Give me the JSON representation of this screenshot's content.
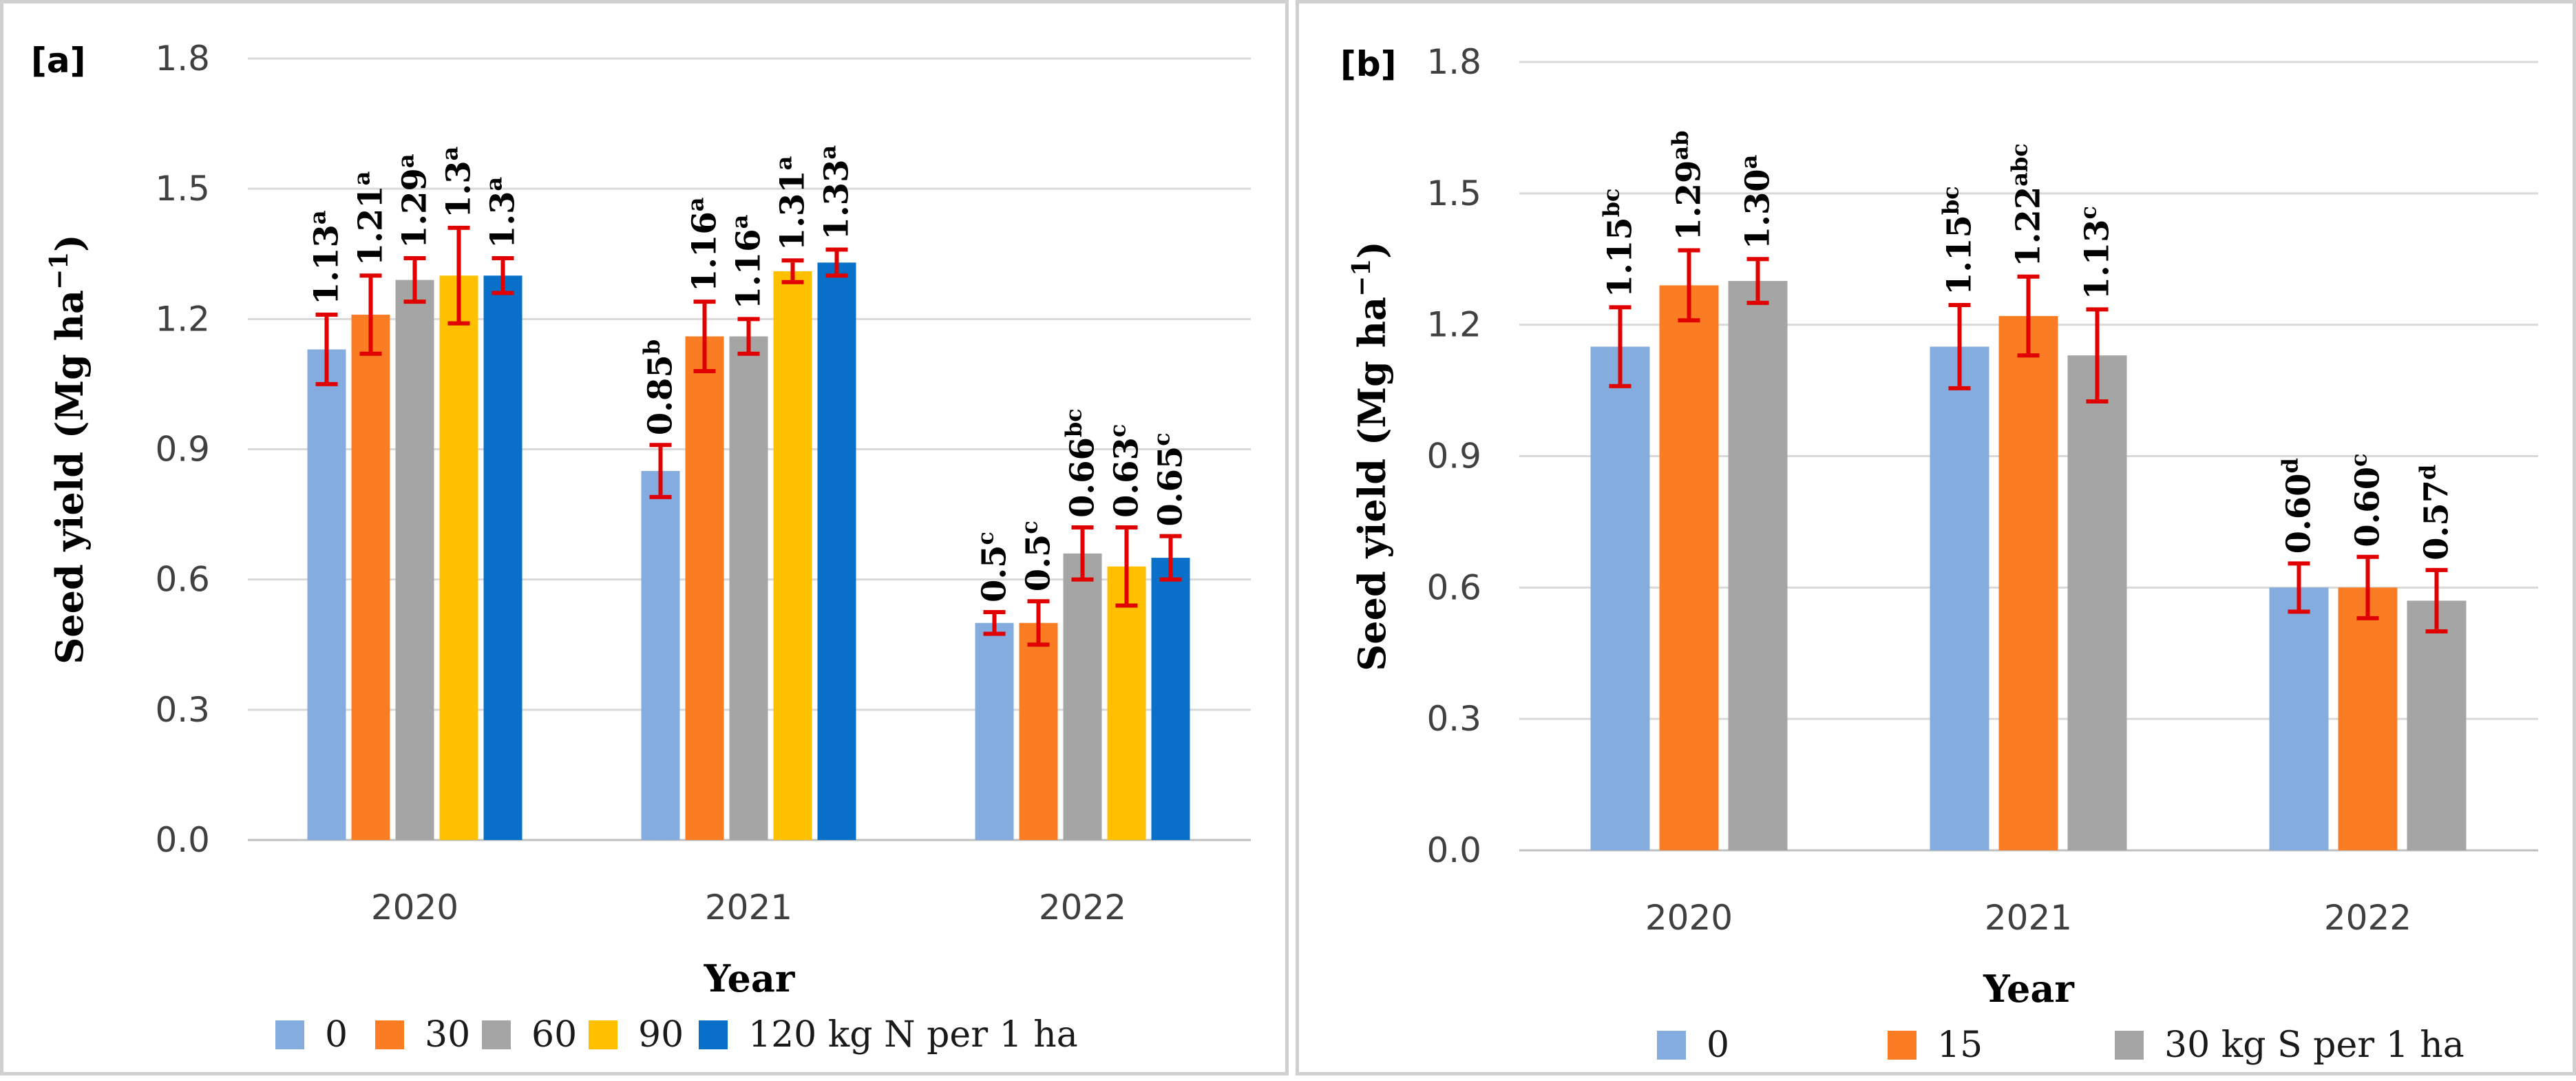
{
  "colors": {
    "light_blue": "#85acdf",
    "orange": "#fa7d24",
    "gray": "#a5a5a5",
    "yellow": "#ffc000",
    "blue": "#0870c8",
    "error_bar": "#e00000"
  },
  "chart_data": [
    {
      "panel": "[a]",
      "type": "bar",
      "xlabel": "Year",
      "ylabel": "Seed yield (Mg ha",
      "ylabel_sup": "−1",
      "ylabel_close": ")",
      "ylim": [
        0,
        1.8
      ],
      "yticks": [
        "0.0",
        "0.3",
        "0.6",
        "0.9",
        "1.2",
        "1.5",
        "1.8"
      ],
      "categories": [
        "2020",
        "2021",
        "2022"
      ],
      "legend_position": "bottom",
      "series": [
        {
          "name": "0",
          "color": "#85acdf",
          "values": [
            1.13,
            0.85,
            0.5
          ],
          "errors": [
            0.08,
            0.06,
            0.025
          ],
          "labels": [
            "1.13",
            "0.85",
            "0.5"
          ],
          "letters": [
            "a",
            "b",
            "c"
          ]
        },
        {
          "name": "30",
          "color": "#fa7d24",
          "values": [
            1.21,
            1.16,
            0.5
          ],
          "errors": [
            0.09,
            0.08,
            0.05
          ],
          "labels": [
            "1.21",
            "1.16",
            "0.5"
          ],
          "letters": [
            "a",
            "a",
            "c"
          ]
        },
        {
          "name": "60",
          "color": "#a5a5a5",
          "values": [
            1.29,
            1.16,
            0.66
          ],
          "errors": [
            0.05,
            0.04,
            0.06
          ],
          "labels": [
            "1.29",
            "1.16",
            "0.66"
          ],
          "letters": [
            "a",
            "a",
            "bc"
          ]
        },
        {
          "name": "90",
          "color": "#ffc000",
          "values": [
            1.3,
            1.31,
            0.63
          ],
          "errors": [
            0.11,
            0.025,
            0.09
          ],
          "labels": [
            "1.3",
            "1.31",
            "0.63"
          ],
          "letters": [
            "a",
            "a",
            "c"
          ]
        },
        {
          "name": "120 kg N per 1 ha",
          "color": "#0870c8",
          "values": [
            1.3,
            1.33,
            0.65
          ],
          "errors": [
            0.04,
            0.03,
            0.05
          ],
          "labels": [
            "1.3",
            "1.33",
            "0.65"
          ],
          "letters": [
            "a",
            "a",
            "c"
          ]
        }
      ]
    },
    {
      "panel": "[b]",
      "type": "bar",
      "xlabel": "Year",
      "ylabel": "Seed yield (Mg ha",
      "ylabel_sup": "−1",
      "ylabel_close": ")",
      "ylim": [
        0,
        1.8
      ],
      "yticks": [
        "0.0",
        "0.3",
        "0.6",
        "0.9",
        "1.2",
        "1.5",
        "1.8"
      ],
      "categories": [
        "2020",
        "2021",
        "2022"
      ],
      "legend_position": "bottom",
      "series": [
        {
          "name": "0",
          "color": "#85acdf",
          "values": [
            1.15,
            1.15,
            0.6
          ],
          "errors": [
            0.09,
            0.095,
            0.055
          ],
          "labels": [
            "1.15",
            "1.15",
            "0.60"
          ],
          "letters": [
            "bc",
            "bc",
            "d"
          ]
        },
        {
          "name": "15",
          "color": "#fa7d24",
          "values": [
            1.29,
            1.22,
            0.6
          ],
          "errors": [
            0.08,
            0.09,
            0.07
          ],
          "labels": [
            "1.29",
            "1.22",
            "0.60"
          ],
          "letters": [
            "ab",
            "abc",
            "c"
          ]
        },
        {
          "name": "30 kg S per 1 ha",
          "color": "#a5a5a5",
          "values": [
            1.3,
            1.13,
            0.57
          ],
          "errors": [
            0.05,
            0.105,
            0.07
          ],
          "labels": [
            "1.30",
            "1.13",
            "0.57"
          ],
          "letters": [
            "a",
            "c",
            "d"
          ]
        }
      ]
    }
  ]
}
